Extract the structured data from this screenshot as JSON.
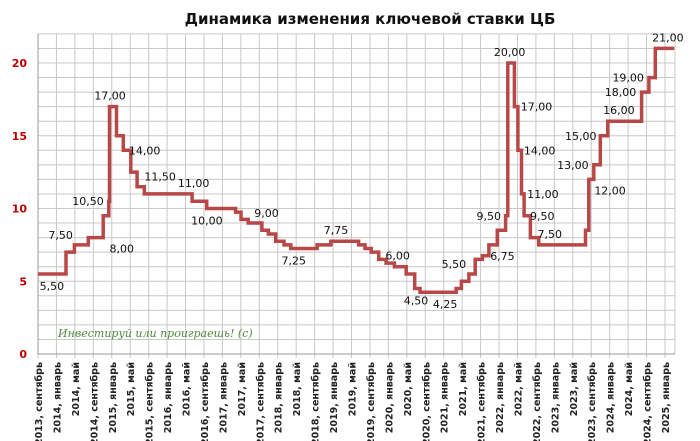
{
  "chart_data": {
    "type": "line",
    "step": true,
    "title": "Динамика изменения ключевой ставки ЦБ",
    "xlabel": "",
    "ylabel": "",
    "ylim": [
      0,
      22
    ],
    "y_ticks": [
      "0",
      "5",
      "10",
      "15",
      "20"
    ],
    "grid": true,
    "line_color": "#b84848",
    "x_tick_labels": [
      "2013, сентябрь",
      "2014, январь",
      "2014, май",
      "2014, сентябрь",
      "2015, январь",
      "2015, май",
      "2015, сентябрь",
      "2016, январь",
      "2016, май",
      "2016, сентябрь",
      "2017, январь",
      "2017, май",
      "2017, сентябрь",
      "2018, январь",
      "2018, май",
      "2018, сентябрь",
      "2019, январь",
      "2019, май",
      "2019, сентябрь",
      "2020, январь",
      "2020, май",
      "2020, сентябрь",
      "2021, январь",
      "2021, май",
      "2021, сентябрь",
      "2022, январь",
      "2022, май",
      "2022, сентябрь",
      "2023, январь",
      "2023, май",
      "2023, сентябрь",
      "2024, январь",
      "2024, май",
      "2024, сентябрь",
      "2025, январь"
    ],
    "series": [
      {
        "points": [
          [
            "2013-09-13",
            5.5
          ],
          [
            "2014-03-03",
            7.0
          ],
          [
            "2014-04-28",
            7.5
          ],
          [
            "2014-07-28",
            8.0
          ],
          [
            "2014-11-05",
            9.5
          ],
          [
            "2014-12-12",
            10.5
          ],
          [
            "2014-12-16",
            17.0
          ],
          [
            "2015-02-02",
            15.0
          ],
          [
            "2015-03-16",
            14.0
          ],
          [
            "2015-05-05",
            12.5
          ],
          [
            "2015-06-16",
            11.5
          ],
          [
            "2015-08-03",
            11.0
          ],
          [
            "2016-06-14",
            10.5
          ],
          [
            "2016-09-19",
            10.0
          ],
          [
            "2017-03-27",
            9.75
          ],
          [
            "2017-05-02",
            9.25
          ],
          [
            "2017-06-19",
            9.0
          ],
          [
            "2017-09-18",
            8.5
          ],
          [
            "2017-10-30",
            8.25
          ],
          [
            "2017-12-18",
            7.75
          ],
          [
            "2018-02-12",
            7.5
          ],
          [
            "2018-03-26",
            7.25
          ],
          [
            "2018-09-17",
            7.5
          ],
          [
            "2018-12-17",
            7.75
          ],
          [
            "2019-06-17",
            7.5
          ],
          [
            "2019-07-29",
            7.25
          ],
          [
            "2019-09-09",
            7.0
          ],
          [
            "2019-10-28",
            6.5
          ],
          [
            "2019-12-16",
            6.25
          ],
          [
            "2020-02-10",
            6.0
          ],
          [
            "2020-04-27",
            5.5
          ],
          [
            "2020-06-22",
            4.5
          ],
          [
            "2020-07-27",
            4.25
          ],
          [
            "2021-03-22",
            4.5
          ],
          [
            "2021-04-26",
            5.0
          ],
          [
            "2021-06-15",
            5.5
          ],
          [
            "2021-07-26",
            6.5
          ],
          [
            "2021-09-13",
            6.75
          ],
          [
            "2021-10-25",
            7.5
          ],
          [
            "2021-12-20",
            8.5
          ],
          [
            "2022-02-14",
            9.5
          ],
          [
            "2022-02-28",
            20.0
          ],
          [
            "2022-04-11",
            17.0
          ],
          [
            "2022-05-04",
            14.0
          ],
          [
            "2022-05-27",
            11.0
          ],
          [
            "2022-06-14",
            9.5
          ],
          [
            "2022-07-25",
            8.0
          ],
          [
            "2022-09-19",
            7.5
          ],
          [
            "2023-07-24",
            8.5
          ],
          [
            "2023-08-15",
            12.0
          ],
          [
            "2023-09-18",
            13.0
          ],
          [
            "2023-10-30",
            15.0
          ],
          [
            "2023-12-18",
            16.0
          ],
          [
            "2024-07-29",
            18.0
          ],
          [
            "2024-09-16",
            19.0
          ],
          [
            "2024-10-28",
            21.0
          ],
          [
            "2025-03-01",
            21.0
          ]
        ]
      }
    ],
    "data_labels": [
      {
        "date": "2013-12-01",
        "value": 5.5,
        "text": "5,50",
        "pos": "below"
      },
      {
        "date": "2014-05-01",
        "value": 7.5,
        "text": "7,50",
        "pos": "above-left"
      },
      {
        "date": "2014-12-05",
        "value": 10.5,
        "text": "10,50",
        "pos": "left"
      },
      {
        "date": "2014-11-20",
        "value": 8.0,
        "text": "8,00",
        "pos": "below-right"
      },
      {
        "date": "2014-12-20",
        "value": 17.0,
        "text": "17,00",
        "pos": "above"
      },
      {
        "date": "2015-03-20",
        "value": 14.0,
        "text": "14,00",
        "pos": "right"
      },
      {
        "date": "2015-07-20",
        "value": 11.5,
        "text": "11,50",
        "pos": "above-right"
      },
      {
        "date": "2016-01-15",
        "value": 11.0,
        "text": "11,00",
        "pos": "above"
      },
      {
        "date": "2016-09-20",
        "value": 10.0,
        "text": "10,00",
        "pos": "below"
      },
      {
        "date": "2017-07-15",
        "value": 9.0,
        "text": "9,00",
        "pos": "above-right"
      },
      {
        "date": "2018-04-15",
        "value": 7.25,
        "text": "7,25",
        "pos": "below"
      },
      {
        "date": "2019-01-20",
        "value": 7.75,
        "text": "7,75",
        "pos": "above"
      },
      {
        "date": "2020-03-01",
        "value": 6.0,
        "text": "6,00",
        "pos": "above"
      },
      {
        "date": "2020-07-01",
        "value": 4.5,
        "text": "4,50",
        "pos": "below"
      },
      {
        "date": "2021-01-10",
        "value": 4.25,
        "text": "4,25",
        "pos": "below"
      },
      {
        "date": "2021-06-10",
        "value": 5.5,
        "text": "5,50",
        "pos": "above-left"
      },
      {
        "date": "2021-10-01",
        "value": 6.75,
        "text": "6,75",
        "pos": "right"
      },
      {
        "date": "2022-02-10",
        "value": 9.5,
        "text": "9,50",
        "pos": "left"
      },
      {
        "date": "2022-03-10",
        "value": 20.0,
        "text": "20,00",
        "pos": "above"
      },
      {
        "date": "2022-04-20",
        "value": 17.0,
        "text": "17,00",
        "pos": "right"
      },
      {
        "date": "2022-05-10",
        "value": 14.0,
        "text": "14,00",
        "pos": "right"
      },
      {
        "date": "2022-06-01",
        "value": 11.0,
        "text": "11,00",
        "pos": "right"
      },
      {
        "date": "2022-06-20",
        "value": 9.5,
        "text": "9,50",
        "pos": "right"
      },
      {
        "date": "2022-12-01",
        "value": 7.5,
        "text": "7,50",
        "pos": "above"
      },
      {
        "date": "2023-09-10",
        "value": 13.0,
        "text": "13,00",
        "pos": "left"
      },
      {
        "date": "2023-11-01",
        "value": 15.0,
        "text": "15,00",
        "pos": "left"
      },
      {
        "date": "2023-08-25",
        "value": 12.0,
        "text": "12,00",
        "pos": "below-right"
      },
      {
        "date": "2024-03-01",
        "value": 16.0,
        "text": "16,00",
        "pos": "above"
      },
      {
        "date": "2024-07-20",
        "value": 18.0,
        "text": "18,00",
        "pos": "left"
      },
      {
        "date": "2024-09-10",
        "value": 19.0,
        "text": "19,00",
        "pos": "left"
      },
      {
        "date": "2025-01-20",
        "value": 21.0,
        "text": "21,00",
        "pos": "above"
      }
    ],
    "watermark": "Инвестируй или проиграешь! (с)"
  }
}
